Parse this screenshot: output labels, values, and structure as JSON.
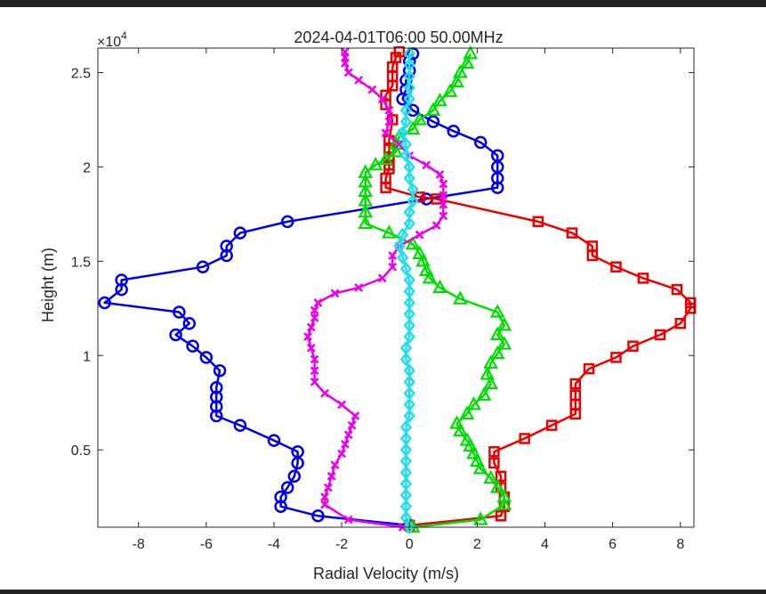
{
  "chart_data": {
    "type": "line",
    "title": "2024-04-01T06:00 50.00MHz",
    "xlabel": "Radial Velocity (m/s)",
    "ylabel": "Height (m)",
    "y_exponent_label": "×10",
    "y_exponent_power": "4",
    "xlim": [
      -9.2,
      8.4
    ],
    "ylim": [
      900,
      26300
    ],
    "xticks": [
      -8,
      -6,
      -4,
      -2,
      0,
      2,
      4,
      6,
      8
    ],
    "xtick_labels": [
      "-8",
      "-6",
      "-4",
      "-2",
      "0",
      "2",
      "4",
      "6",
      "8"
    ],
    "yticks": [
      5000,
      10000,
      15000,
      20000,
      25000
    ],
    "ytick_labels": [
      "0.5",
      "1",
      "1.5",
      "2",
      "2.5"
    ],
    "grid": false,
    "series": [
      {
        "color": "#0000ee",
        "marker": "circle",
        "points": [
          [
            0,
            1000
          ],
          [
            -2.7,
            1500
          ],
          [
            -3.8,
            2000
          ],
          [
            -3.8,
            2500
          ],
          [
            -3.6,
            3000
          ],
          [
            -3.4,
            3600
          ],
          [
            -3.3,
            4300
          ],
          [
            -3.3,
            4900
          ],
          [
            -4.0,
            5500
          ],
          [
            -5.0,
            6300
          ],
          [
            -5.7,
            6800
          ],
          [
            -5.7,
            7300
          ],
          [
            -5.7,
            7800
          ],
          [
            -5.7,
            8300
          ],
          [
            -5.6,
            9200
          ],
          [
            -6.0,
            9900
          ],
          [
            -6.4,
            10500
          ],
          [
            -6.9,
            11100
          ],
          [
            -6.5,
            11700
          ],
          [
            -6.8,
            12300
          ],
          [
            -9.0,
            12800
          ],
          [
            -8.5,
            13500
          ],
          [
            -8.5,
            14000
          ],
          [
            -6.1,
            14700
          ],
          [
            -5.4,
            15300
          ],
          [
            -5.4,
            15800
          ],
          [
            -5.0,
            16500
          ],
          [
            -3.6,
            17100
          ],
          [
            0.5,
            18300
          ],
          [
            2.6,
            18900
          ],
          [
            2.6,
            19400
          ],
          [
            2.6,
            20000
          ],
          [
            2.6,
            20600
          ],
          [
            2.1,
            21300
          ],
          [
            1.3,
            21900
          ],
          [
            0.7,
            22400
          ],
          [
            0.1,
            23000
          ],
          [
            -0.2,
            23600
          ],
          [
            -0.1,
            24100
          ],
          [
            -0.1,
            24600
          ],
          [
            0,
            25100
          ],
          [
            0,
            25600
          ],
          [
            0.1,
            26000
          ]
        ]
      },
      {
        "color": "#ee0000",
        "marker": "square",
        "points": [
          [
            0,
            1000
          ],
          [
            2.7,
            1500
          ],
          [
            2.8,
            2000
          ],
          [
            2.8,
            2500
          ],
          [
            2.7,
            3000
          ],
          [
            2.7,
            3600
          ],
          [
            2.5,
            4300
          ],
          [
            2.5,
            4900
          ],
          [
            3.4,
            5600
          ],
          [
            4.2,
            6300
          ],
          [
            4.9,
            6900
          ],
          [
            4.9,
            7400
          ],
          [
            4.9,
            7900
          ],
          [
            4.9,
            8500
          ],
          [
            5.3,
            9300
          ],
          [
            6.1,
            9900
          ],
          [
            6.6,
            10500
          ],
          [
            7.4,
            11100
          ],
          [
            8.0,
            11700
          ],
          [
            8.3,
            12500
          ],
          [
            8.3,
            12800
          ],
          [
            7.9,
            13500
          ],
          [
            6.9,
            14100
          ],
          [
            6.1,
            14700
          ],
          [
            5.4,
            15300
          ],
          [
            5.4,
            15800
          ],
          [
            4.8,
            16500
          ],
          [
            3.8,
            17100
          ],
          [
            0.8,
            18300
          ],
          [
            0.3,
            18400
          ],
          [
            -0.7,
            18900
          ],
          [
            -0.7,
            19400
          ],
          [
            -0.6,
            19900
          ],
          [
            -0.6,
            20100
          ],
          [
            -0.6,
            20500
          ],
          [
            -0.6,
            21000
          ],
          [
            -0.6,
            21400
          ],
          [
            -0.5,
            22500
          ],
          [
            -0.7,
            23300
          ],
          [
            -0.7,
            23800
          ],
          [
            -0.5,
            24300
          ],
          [
            -0.5,
            24800
          ],
          [
            -0.5,
            25300
          ],
          [
            -0.4,
            25800
          ],
          [
            -0.3,
            26100
          ]
        ]
      },
      {
        "color": "#00dd00",
        "marker": "triangle",
        "points": [
          [
            0.1,
            900
          ],
          [
            2.1,
            1300
          ],
          [
            2.8,
            2100
          ],
          [
            2.8,
            2500
          ],
          [
            2.6,
            3000
          ],
          [
            2.4,
            3500
          ],
          [
            2.1,
            4000
          ],
          [
            2.0,
            4400
          ],
          [
            1.9,
            4800
          ],
          [
            1.8,
            5200
          ],
          [
            1.7,
            5500
          ],
          [
            1.5,
            6000
          ],
          [
            1.4,
            6400
          ],
          [
            1.7,
            6900
          ],
          [
            1.9,
            7400
          ],
          [
            2.2,
            7900
          ],
          [
            2.4,
            8500
          ],
          [
            2.3,
            9000
          ],
          [
            2.4,
            9600
          ],
          [
            2.6,
            10100
          ],
          [
            2.8,
            10600
          ],
          [
            2.6,
            11100
          ],
          [
            2.8,
            11600
          ],
          [
            2.6,
            12300
          ],
          [
            1.5,
            13000
          ],
          [
            0.9,
            13600
          ],
          [
            0.6,
            14100
          ],
          [
            0.5,
            14500
          ],
          [
            0.4,
            15000
          ],
          [
            0.3,
            15400
          ],
          [
            0.1,
            15900
          ],
          [
            -0.6,
            16500
          ],
          [
            -1.3,
            17000
          ],
          [
            -1.3,
            17600
          ],
          [
            -1.3,
            18200
          ],
          [
            -1.3,
            18700
          ],
          [
            -1.3,
            19200
          ],
          [
            -1.3,
            19700
          ],
          [
            -1.0,
            20100
          ],
          [
            -0.7,
            20400
          ],
          [
            -0.4,
            20800
          ],
          [
            -0.4,
            21200
          ],
          [
            -0.3,
            21600
          ],
          [
            0.1,
            22000
          ],
          [
            0.3,
            22500
          ],
          [
            0.7,
            23000
          ],
          [
            0.9,
            23500
          ],
          [
            1.2,
            24000
          ],
          [
            1.4,
            24500
          ],
          [
            1.5,
            25000
          ],
          [
            1.7,
            25500
          ],
          [
            1.8,
            26000
          ]
        ]
      },
      {
        "color": "#ee00ee",
        "marker": "x",
        "points": [
          [
            -0.2,
            900
          ],
          [
            -1.8,
            1300
          ],
          [
            -2.5,
            2100
          ],
          [
            -2.5,
            2500
          ],
          [
            -2.4,
            3000
          ],
          [
            -2.3,
            3600
          ],
          [
            -2.2,
            4200
          ],
          [
            -2.0,
            4800
          ],
          [
            -1.9,
            5300
          ],
          [
            -1.8,
            5800
          ],
          [
            -1.7,
            6300
          ],
          [
            -1.6,
            6800
          ],
          [
            -2.0,
            7400
          ],
          [
            -2.5,
            8000
          ],
          [
            -2.8,
            8600
          ],
          [
            -2.8,
            9200
          ],
          [
            -2.8,
            9800
          ],
          [
            -2.9,
            10400
          ],
          [
            -3.0,
            11000
          ],
          [
            -2.9,
            11500
          ],
          [
            -2.8,
            12000
          ],
          [
            -2.8,
            12400
          ],
          [
            -2.7,
            12800
          ],
          [
            -2.2,
            13300
          ],
          [
            -1.5,
            13600
          ],
          [
            -0.8,
            14100
          ],
          [
            -0.5,
            14700
          ],
          [
            -0.5,
            15300
          ],
          [
            -0.3,
            15800
          ],
          [
            0.3,
            16400
          ],
          [
            0.8,
            16900
          ],
          [
            1.0,
            17400
          ],
          [
            1.0,
            18000
          ],
          [
            1.0,
            18500
          ],
          [
            1.0,
            19100
          ],
          [
            0.9,
            19600
          ],
          [
            0.5,
            20100
          ],
          [
            0.0,
            20600
          ],
          [
            -0.3,
            21200
          ],
          [
            -0.7,
            21800
          ],
          [
            -0.6,
            22400
          ],
          [
            -0.6,
            23000
          ],
          [
            -0.8,
            23600
          ],
          [
            -1.1,
            24100
          ],
          [
            -1.5,
            24600
          ],
          [
            -1.8,
            25000
          ],
          [
            -1.9,
            25500
          ],
          [
            -1.9,
            25800
          ],
          [
            -1.9,
            26100
          ]
        ]
      },
      {
        "color": "#22ddee",
        "marker": "diamond",
        "points": [
          [
            0.0,
            900
          ],
          [
            -0.1,
            1400
          ],
          [
            -0.1,
            2000
          ],
          [
            -0.1,
            2600
          ],
          [
            -0.1,
            3200
          ],
          [
            -0.1,
            3800
          ],
          [
            -0.1,
            4400
          ],
          [
            -0.1,
            5000
          ],
          [
            -0.1,
            5600
          ],
          [
            -0.1,
            6200
          ],
          [
            0.0,
            6800
          ],
          [
            0.0,
            7400
          ],
          [
            0.0,
            8000
          ],
          [
            0.0,
            8600
          ],
          [
            0.0,
            9200
          ],
          [
            -0.1,
            9800
          ],
          [
            -0.1,
            10400
          ],
          [
            0.0,
            11000
          ],
          [
            0.0,
            11600
          ],
          [
            0.0,
            12200
          ],
          [
            0.0,
            12800
          ],
          [
            0.0,
            13400
          ],
          [
            0.0,
            14000
          ],
          [
            -0.1,
            14600
          ],
          [
            -0.2,
            15200
          ],
          [
            -0.3,
            15800
          ],
          [
            -0.2,
            16400
          ],
          [
            0.0,
            17000
          ],
          [
            0.0,
            17600
          ],
          [
            0.1,
            18200
          ],
          [
            0.1,
            18800
          ],
          [
            0.0,
            19400
          ],
          [
            0.0,
            20000
          ],
          [
            -0.1,
            20600
          ],
          [
            -0.1,
            21200
          ],
          [
            -0.2,
            21800
          ],
          [
            -0.1,
            22400
          ],
          [
            -0.1,
            23000
          ],
          [
            0.0,
            23600
          ],
          [
            0.0,
            24200
          ],
          [
            0.0,
            24800
          ],
          [
            0.0,
            25400
          ],
          [
            0.0,
            26000
          ]
        ]
      }
    ]
  }
}
